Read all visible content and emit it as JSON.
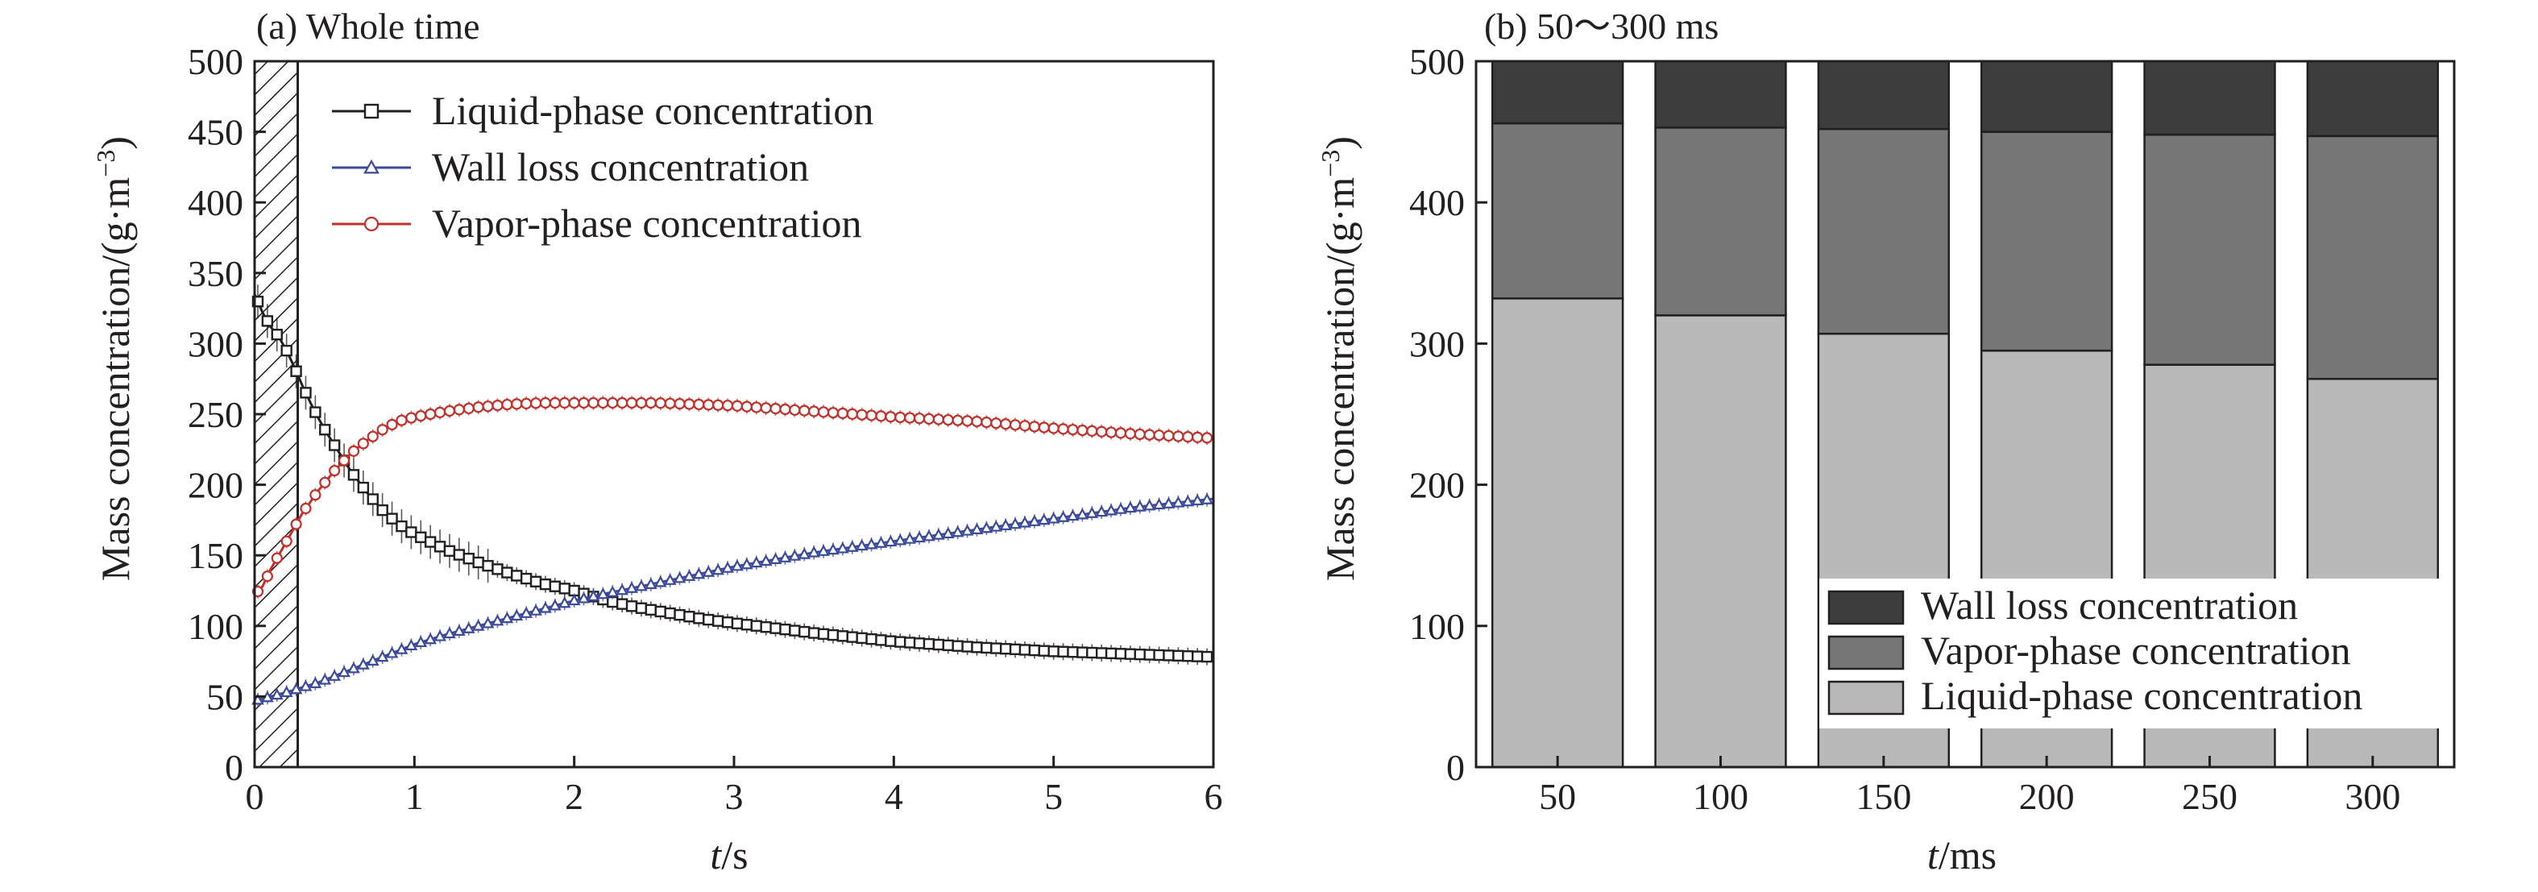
{
  "colors": {
    "liquid_line": "#231f20",
    "wall_line": "#3b4a9a",
    "vapor_line": "#c0312b",
    "wall_bar": "#3d3d3d",
    "vapor_bar": "#777777",
    "liquid_bar": "#b9b9b9"
  },
  "chart_data": [
    {
      "type": "line",
      "title": "(a) Whole time",
      "xlabel_italic": "t",
      "xlabel_unit": "/s",
      "ylabel": "Mass concentration/(g·m",
      "ylabel_sup": "−3",
      "ylabel_close": ")",
      "xlim": [
        0,
        6
      ],
      "ylim": [
        0,
        500
      ],
      "xticks": [
        0,
        1,
        2,
        3,
        4,
        5,
        6
      ],
      "yticks": [
        0,
        50,
        100,
        150,
        200,
        250,
        300,
        350,
        400,
        450,
        500
      ],
      "hatched_region": [
        0,
        0.27
      ],
      "legend": {
        "position": "top-left"
      },
      "series": [
        {
          "name": "Liquid-phase concentration",
          "marker": "square",
          "color_key": "liquid_line",
          "x": [
            0,
            0.05,
            0.1,
            0.15,
            0.2,
            0.25,
            0.3,
            0.35,
            0.4,
            0.45,
            0.5,
            0.6,
            0.7,
            0.8,
            0.9,
            1.0,
            1.2,
            1.4,
            1.6,
            1.8,
            2.0,
            2.2,
            2.4,
            2.6,
            2.8,
            3.0,
            3.5,
            4.0,
            4.5,
            5.0,
            5.5,
            6.0
          ],
          "y": [
            335,
            322,
            312,
            305,
            295,
            283,
            270,
            258,
            247,
            237,
            228,
            210,
            195,
            182,
            172,
            165,
            154,
            145,
            137,
            130,
            125,
            118,
            113,
            109,
            105,
            102,
            95,
            89,
            85,
            82,
            80,
            78
          ]
        },
        {
          "name": "Wall loss concentration",
          "marker": "triangle",
          "color_key": "wall_line",
          "x": [
            0,
            0.2,
            0.4,
            0.6,
            0.8,
            1.0,
            1.2,
            1.4,
            1.6,
            1.8,
            2.0,
            2.2,
            2.5,
            3.0,
            3.5,
            4.0,
            4.5,
            5.0,
            5.5,
            6.0
          ],
          "y": [
            47,
            53,
            60,
            69,
            78,
            87,
            94,
            100,
            106,
            112,
            118,
            123,
            130,
            142,
            152,
            160,
            168,
            176,
            184,
            190
          ]
        },
        {
          "name": "Vapor-phase concentration",
          "marker": "circle",
          "color_key": "vapor_line",
          "x": [
            0,
            0.05,
            0.1,
            0.2,
            0.3,
            0.4,
            0.5,
            0.6,
            0.7,
            0.8,
            0.9,
            1.0,
            1.2,
            1.4,
            1.6,
            1.8,
            2.0,
            2.5,
            3.0,
            3.5,
            4.0,
            4.5,
            5.0,
            5.5,
            6.0
          ],
          "y": [
            122,
            128,
            140,
            160,
            180,
            196,
            210,
            222,
            231,
            239,
            245,
            248,
            252,
            255,
            257,
            258,
            258,
            258,
            256,
            252,
            248,
            245,
            240,
            236,
            233
          ]
        }
      ]
    },
    {
      "type": "bar",
      "stacked": true,
      "title": "(b) 50～300 ms",
      "xlabel_italic": "t",
      "xlabel_unit": "/ms",
      "ylabel": "Mass concentration/(g·m",
      "ylabel_sup": "−3",
      "ylabel_close": ")",
      "ylim": [
        0,
        500
      ],
      "yticks": [
        0,
        100,
        200,
        300,
        400,
        500
      ],
      "categories": [
        "50",
        "100",
        "150",
        "200",
        "250",
        "300"
      ],
      "legend": {
        "position": "bottom-right"
      },
      "series": [
        {
          "name": "Liquid-phase concentration",
          "color_key": "liquid_bar",
          "values": [
            332,
            320,
            307,
            295,
            285,
            275
          ]
        },
        {
          "name": "Vapor-phase concentration",
          "color_key": "vapor_bar",
          "values": [
            124,
            133,
            145,
            155,
            163,
            172
          ]
        },
        {
          "name": "Wall loss concentration",
          "color_key": "wall_bar",
          "values": [
            44,
            47,
            48,
            50,
            52,
            53
          ]
        }
      ],
      "legend_order": [
        "Wall loss concentration",
        "Vapor-phase concentration",
        "Liquid-phase concentration"
      ]
    }
  ]
}
